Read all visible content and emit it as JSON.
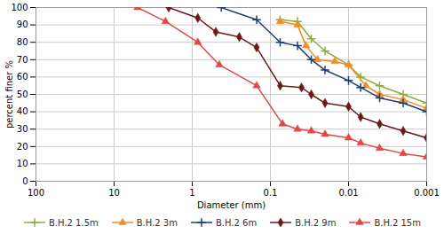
{
  "chart_data": {
    "type": "line",
    "x_label": "Diameter (mm)",
    "y_label": "percent finer %",
    "log": "x",
    "grid": true,
    "legend": "bottom",
    "xlim": [
      100,
      0.001
    ],
    "xticks": [
      100,
      10,
      1,
      0.1,
      0.01,
      0.001
    ],
    "ylim": [
      0,
      100
    ],
    "yticks": [
      0,
      10,
      20,
      30,
      40,
      50,
      60,
      70,
      80,
      90,
      100
    ],
    "series": [
      {
        "name": "B.H.2 1.5m",
        "color": "#8aaf3e",
        "marker": "plus",
        "x": [
          0.075,
          0.045,
          0.03,
          0.02,
          0.01,
          0.007,
          0.004,
          0.002,
          0.001
        ],
        "values": [
          93,
          92,
          82,
          75,
          67,
          60,
          55,
          50,
          45
        ]
      },
      {
        "name": "B.H.2 3m",
        "color": "#f28c28",
        "marker": "triangle",
        "x": [
          0.075,
          0.045,
          0.035,
          0.025,
          0.015,
          0.01,
          0.006,
          0.004,
          0.002,
          0.001
        ],
        "values": [
          92,
          90,
          78,
          70,
          69,
          67,
          55,
          50,
          47,
          42
        ]
      },
      {
        "name": "B.H.2 6m",
        "color": "#1f3f6e",
        "marker": "plus",
        "x": [
          0.425,
          0.15,
          0.075,
          0.045,
          0.03,
          0.02,
          0.01,
          0.007,
          0.004,
          0.002,
          0.001
        ],
        "values": [
          100,
          93,
          80,
          78,
          70,
          64,
          58,
          54,
          48,
          45,
          40
        ]
      },
      {
        "name": "B.H.2 9m",
        "color": "#6b1a1a",
        "marker": "diamond",
        "x": [
          2,
          0.85,
          0.5,
          0.25,
          0.15,
          0.075,
          0.04,
          0.03,
          0.02,
          0.01,
          0.007,
          0.004,
          0.002,
          0.001
        ],
        "values": [
          100,
          94,
          86,
          83,
          77,
          55,
          54,
          50,
          45,
          43,
          37,
          33,
          29,
          25
        ]
      },
      {
        "name": "B.H.2 15m",
        "color": "#e0484b",
        "marker": "triangle",
        "x": [
          5,
          2.2,
          0.85,
          0.45,
          0.15,
          0.07,
          0.045,
          0.03,
          0.02,
          0.01,
          0.007,
          0.004,
          0.002,
          0.001
        ],
        "values": [
          100,
          92,
          80,
          67,
          55,
          33,
          30,
          29,
          27,
          25,
          22,
          19,
          16,
          14
        ]
      }
    ]
  }
}
